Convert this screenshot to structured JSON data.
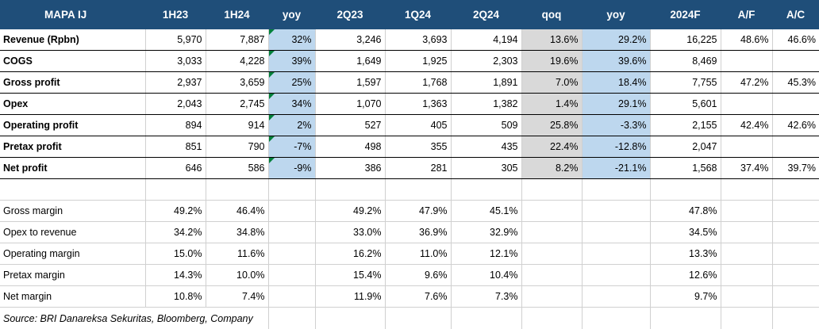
{
  "table": {
    "headers": [
      "MAPA IJ",
      "1H23",
      "1H24",
      "yoy",
      "2Q23",
      "1Q24",
      "2Q24",
      "qoq",
      "yoy",
      "2024F",
      "A/F",
      "A/C"
    ],
    "main_rows": [
      {
        "label": "Revenue (Rpbn)",
        "cells": [
          "5,970",
          "7,887",
          "32%",
          "3,246",
          "3,693",
          "4,194",
          "13.6%",
          "29.2%",
          "16,225",
          "48.6%",
          "46.6%"
        ]
      },
      {
        "label": "COGS",
        "cells": [
          "3,033",
          "4,228",
          "39%",
          "1,649",
          "1,925",
          "2,303",
          "19.6%",
          "39.6%",
          "8,469",
          "",
          ""
        ]
      },
      {
        "label": "Gross profit",
        "cells": [
          "2,937",
          "3,659",
          "25%",
          "1,597",
          "1,768",
          "1,891",
          "7.0%",
          "18.4%",
          "7,755",
          "47.2%",
          "45.3%"
        ]
      },
      {
        "label": "Opex",
        "cells": [
          "2,043",
          "2,745",
          "34%",
          "1,070",
          "1,363",
          "1,382",
          "1.4%",
          "29.1%",
          "5,601",
          "",
          ""
        ]
      },
      {
        "label": "Operating profit",
        "cells": [
          "894",
          "914",
          "2%",
          "527",
          "405",
          "509",
          "25.8%",
          "-3.3%",
          "2,155",
          "42.4%",
          "42.6%"
        ]
      },
      {
        "label": "Pretax profit",
        "cells": [
          "851",
          "790",
          "-7%",
          "498",
          "355",
          "435",
          "22.4%",
          "-12.8%",
          "2,047",
          "",
          ""
        ]
      },
      {
        "label": "Net profit",
        "cells": [
          "646",
          "586",
          "-9%",
          "386",
          "281",
          "305",
          "8.2%",
          "-21.1%",
          "1,568",
          "37.4%",
          "39.7%"
        ]
      }
    ],
    "margin_rows": [
      {
        "label": "Gross margin",
        "cells": [
          "49.2%",
          "46.4%",
          "",
          "49.2%",
          "47.9%",
          "45.1%",
          "",
          "",
          "47.8%",
          "",
          ""
        ]
      },
      {
        "label": "Opex to revenue",
        "cells": [
          "34.2%",
          "34.8%",
          "",
          "33.0%",
          "36.9%",
          "32.9%",
          "",
          "",
          "34.5%",
          "",
          ""
        ]
      },
      {
        "label": "Operating margin",
        "cells": [
          "15.0%",
          "11.6%",
          "",
          "16.2%",
          "11.0%",
          "12.1%",
          "",
          "",
          "13.3%",
          "",
          ""
        ]
      },
      {
        "label": "Pretax margin",
        "cells": [
          "14.3%",
          "10.0%",
          "",
          "15.4%",
          "9.6%",
          "10.4%",
          "",
          "",
          "12.6%",
          "",
          ""
        ]
      },
      {
        "label": "Net margin",
        "cells": [
          "10.8%",
          "7.4%",
          "",
          "11.9%",
          "7.6%",
          "7.3%",
          "",
          "",
          "9.7%",
          "",
          ""
        ]
      }
    ],
    "source": "Source: BRI Danareksa Sekuritas, Bloomberg, Company"
  },
  "colors": {
    "header_bg": "#1f4e79",
    "header_text": "#ffffff",
    "highlight_blue": "#bdd7ee",
    "highlight_grey": "#d9d9d9",
    "comment_flag": "#00803a"
  }
}
